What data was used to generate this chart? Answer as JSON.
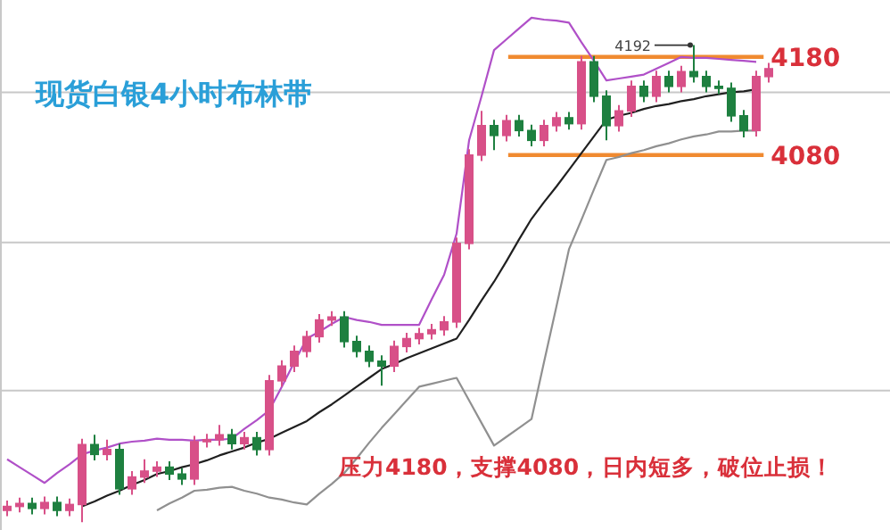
{
  "chart_data": {
    "type": "candlestick",
    "title": "现货白银4小时布林带",
    "categories": [
      null,
      null,
      null,
      null,
      null,
      null,
      null,
      null,
      null,
      null,
      null,
      null,
      null,
      null,
      null,
      null,
      null,
      null,
      null,
      null,
      null,
      null,
      null,
      null,
      null,
      null,
      null,
      null,
      null,
      null,
      null,
      null,
      null,
      null,
      null,
      null,
      null,
      null,
      null,
      null,
      null,
      null,
      null,
      null,
      null,
      null,
      null,
      null,
      null,
      null,
      null,
      null,
      null,
      null,
      null,
      null,
      null,
      null,
      null,
      null,
      null,
      null
    ],
    "ohlc": [
      [
        3718,
        3728,
        3712,
        3722
      ],
      [
        3722,
        3731,
        3716,
        3725
      ],
      [
        3725,
        3731,
        3714,
        3720
      ],
      [
        3720,
        3732,
        3714,
        3726
      ],
      [
        3726,
        3732,
        3712,
        3718
      ],
      [
        3718,
        3730,
        3712,
        3724
      ],
      [
        3724,
        3791,
        3706,
        3785
      ],
      [
        3785,
        3795,
        3769,
        3775
      ],
      [
        3775,
        3790,
        3769,
        3780
      ],
      [
        3780,
        3786,
        3734,
        3740
      ],
      [
        3740,
        3758,
        3734,
        3752
      ],
      [
        3752,
        3770,
        3746,
        3758
      ],
      [
        3758,
        3768,
        3752,
        3762
      ],
      [
        3762,
        3768,
        3749,
        3755
      ],
      [
        3755,
        3761,
        3744,
        3750
      ],
      [
        3750,
        3794,
        3744,
        3788
      ],
      [
        3788,
        3796,
        3782,
        3790
      ],
      [
        3790,
        3805,
        3784,
        3795
      ],
      [
        3795,
        3801,
        3780,
        3786
      ],
      [
        3786,
        3798,
        3780,
        3792
      ],
      [
        3792,
        3798,
        3774,
        3780
      ],
      [
        3780,
        3856,
        3774,
        3850
      ],
      [
        3850,
        3871,
        3844,
        3865
      ],
      [
        3865,
        3886,
        3859,
        3880
      ],
      [
        3880,
        3901,
        3874,
        3895
      ],
      [
        3895,
        3918,
        3889,
        3912
      ],
      [
        3912,
        3921,
        3906,
        3915
      ],
      [
        3915,
        3921,
        3884,
        3890
      ],
      [
        3890,
        3896,
        3874,
        3880
      ],
      [
        3880,
        3886,
        3864,
        3870
      ],
      [
        3870,
        3876,
        3845,
        3865
      ],
      [
        3865,
        3891,
        3859,
        3885
      ],
      [
        3885,
        3899,
        3879,
        3893
      ],
      [
        3893,
        3904,
        3887,
        3898
      ],
      [
        3898,
        3908,
        3892,
        3902
      ],
      [
        3902,
        3916,
        3896,
        3910
      ],
      [
        3910,
        3996,
        3904,
        3990
      ],
      [
        3990,
        4086,
        3984,
        4080
      ],
      [
        4080,
        4125,
        4074,
        4110
      ],
      [
        4110,
        4116,
        4085,
        4100
      ],
      [
        4100,
        4121,
        4094,
        4115
      ],
      [
        4115,
        4121,
        4099,
        4105
      ],
      [
        4105,
        4111,
        4089,
        4095
      ],
      [
        4095,
        4116,
        4089,
        4110
      ],
      [
        4110,
        4124,
        4104,
        4118
      ],
      [
        4118,
        4124,
        4106,
        4112
      ],
      [
        4112,
        4181,
        4106,
        4175
      ],
      [
        4175,
        4181,
        4134,
        4140
      ],
      [
        4140,
        4146,
        4095,
        4110
      ],
      [
        4110,
        4131,
        4104,
        4125
      ],
      [
        4125,
        4156,
        4119,
        4150
      ],
      [
        4150,
        4156,
        4134,
        4140
      ],
      [
        4140,
        4166,
        4134,
        4160
      ],
      [
        4160,
        4166,
        4144,
        4150
      ],
      [
        4150,
        4171,
        4144,
        4165
      ],
      [
        4165,
        4192,
        4154,
        4160
      ],
      [
        4160,
        4166,
        4144,
        4150
      ],
      [
        4150,
        4156,
        4142,
        4148
      ],
      [
        4148,
        4154,
        4114,
        4120
      ],
      [
        4120,
        4126,
        4098,
        4105
      ],
      [
        4105,
        4166,
        4099,
        4160
      ],
      [
        4160,
        4174,
        4154,
        4168
      ]
    ],
    "series": [
      {
        "type": "line",
        "color": "#b050c8",
        "values": [
          3770,
          3762,
          3754,
          3746,
          3756,
          3765,
          3775,
          3779,
          3782,
          3786,
          3788,
          3789,
          3791,
          3790,
          3790,
          3789,
          3790,
          3790,
          3791,
          3801,
          3810,
          3820,
          3844,
          3869,
          3893,
          3900,
          3908,
          3915,
          3912,
          3910,
          3907,
          3907,
          3907,
          3907,
          3933,
          3958,
          4000,
          4095,
          4140,
          4187,
          4198,
          4209,
          4220,
          4218,
          4217,
          4215,
          4195,
          4176,
          4156,
          4158,
          4160,
          4162,
          4168,
          4174,
          4180,
          4179,
          4179,
          4178,
          4177,
          4176,
          4175,
          null
        ]
      },
      {
        "type": "line",
        "color": "#202020",
        "values": [
          null,
          null,
          null,
          null,
          null,
          null,
          3722,
          3727,
          3733,
          3738,
          3744,
          3749,
          3755,
          3758,
          3762,
          3765,
          3769,
          3774,
          3778,
          3782,
          3787,
          3791,
          3797,
          3803,
          3809,
          3818,
          3826,
          3835,
          3844,
          3853,
          3862,
          3867,
          3873,
          3878,
          3883,
          3888,
          3893,
          3912,
          3932,
          3951,
          3972,
          3994,
          4015,
          4032,
          4048,
          4065,
          4082,
          4099,
          4116,
          4120,
          4123,
          4127,
          4130,
          4132,
          4135,
          4137,
          4140,
          4142,
          4144,
          4145,
          4147,
          null
        ]
      },
      {
        "type": "line",
        "color": "#909090",
        "values": [
          null,
          null,
          null,
          null,
          null,
          null,
          null,
          null,
          null,
          null,
          null,
          null,
          3718,
          3725,
          3731,
          3738,
          3739,
          3741,
          3742,
          3738,
          3735,
          3731,
          3729,
          3726,
          3724,
          3735,
          3745,
          3756,
          3771,
          3787,
          3802,
          3816,
          3830,
          3844,
          3847,
          3850,
          3853,
          3830,
          3807,
          3784,
          3793,
          3802,
          3811,
          3869,
          3926,
          3984,
          4014,
          4045,
          4075,
          4078,
          4082,
          4085,
          4089,
          4092,
          4096,
          4099,
          4101,
          4104,
          4104,
          4105,
          4105,
          null
        ]
      }
    ],
    "ylim": [
      3698,
      4238
    ],
    "yticks": [
      {
        "value": 3840,
        "label": null
      },
      {
        "value": 3991,
        "label": null
      },
      4080,
      {
        "value": 4144,
        "label": null
      },
      4180
    ],
    "grid": "y",
    "tick_labels": "y",
    "ref_lines": [
      {
        "axis": "y",
        "value": 4180,
        "color": "#f08a30"
      },
      {
        "axis": "y",
        "value": 4080,
        "color": "#f08a30"
      }
    ],
    "annotations": [
      "4192",
      "压力4180，支撑4080，日内短多，破位止损！"
    ]
  }
}
